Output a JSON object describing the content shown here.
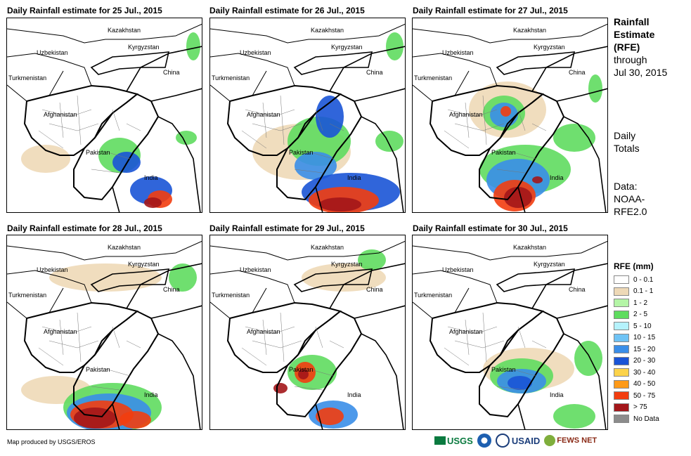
{
  "panels": [
    {
      "title": "Daily Rainfall estimate for 25 Jul., 2015"
    },
    {
      "title": "Daily Rainfall estimate for 26 Jul., 2015"
    },
    {
      "title": "Daily Rainfall estimate for 27 Jul., 2015"
    },
    {
      "title": "Daily Rainfall estimate for 28 Jul., 2015"
    },
    {
      "title": "Daily Rainfall estimate for 29 Jul., 2015"
    },
    {
      "title": "Daily Rainfall estimate for 30 Jul., 2015"
    }
  ],
  "countries": {
    "kazakhstan": "Kazakhstan",
    "uzbekistan": "Uzbekistan",
    "kyrgyzstan": "Kyrgyzstan",
    "turkmenistan": "Turkmenistan",
    "china": "China",
    "afghanistan": "Afghanistan",
    "pakistan": "Pakistan",
    "india": "India"
  },
  "sidebar": {
    "title_line1": "Rainfall",
    "title_line2": "Estimate",
    "title_line3": "(RFE)",
    "through": "through",
    "date": "Jul 30, 2015",
    "daily1": "Daily",
    "daily2": "Totals",
    "data1": "Data:",
    "data2": "NOAA-",
    "data3": "RFE2.0"
  },
  "legend": {
    "title": "RFE (mm)",
    "items": [
      {
        "label": "0 - 0.1",
        "color": "#ffffff"
      },
      {
        "label": "0.1 - 1",
        "color": "#eed9b7"
      },
      {
        "label": "1 - 2",
        "color": "#b4f5a6"
      },
      {
        "label": "2 - 5",
        "color": "#5fdc5f"
      },
      {
        "label": "5 - 10",
        "color": "#b5f2fc"
      },
      {
        "label": "10 - 15",
        "color": "#6fc3f5"
      },
      {
        "label": "15 - 20",
        "color": "#3a8ee8"
      },
      {
        "label": "20 - 30",
        "color": "#1a54d6"
      },
      {
        "label": "30 - 40",
        "color": "#fcd34a"
      },
      {
        "label": "40 - 50",
        "color": "#ff9a18"
      },
      {
        "label": "50 - 75",
        "color": "#f23d0f"
      },
      {
        "label": "> 75",
        "color": "#a3161a"
      },
      {
        "label": "No Data",
        "color": "#8c8c8c"
      }
    ]
  },
  "credit": "Map produced by USGS/EROS",
  "logos": {
    "usgs": "USGS",
    "usaid": "USAID",
    "fewsnet": "FEWS NET"
  }
}
